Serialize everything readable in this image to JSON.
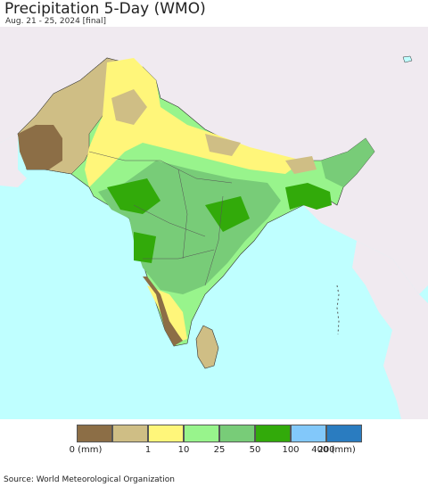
{
  "title": "Precipitation 5-Day (WMO)",
  "subtitle": "Aug. 21 - 25, 2024 [final]",
  "legend": {
    "colors": [
      "#8c6e46",
      "#cfbe85",
      "#fff67a",
      "#98f48c",
      "#78cc78",
      "#32aa0a",
      "#82c8fa",
      "#2a7cc0"
    ],
    "labels": [
      "0 (mm)",
      "1",
      "10",
      "25",
      "50",
      "100",
      "200",
      "400 (mm)"
    ]
  },
  "map_colors": {
    "ocean": "#bfffff",
    "outside_land": "#f0eaf0",
    "border": "#333333"
  },
  "source": "Source: World Meteorological Organization"
}
